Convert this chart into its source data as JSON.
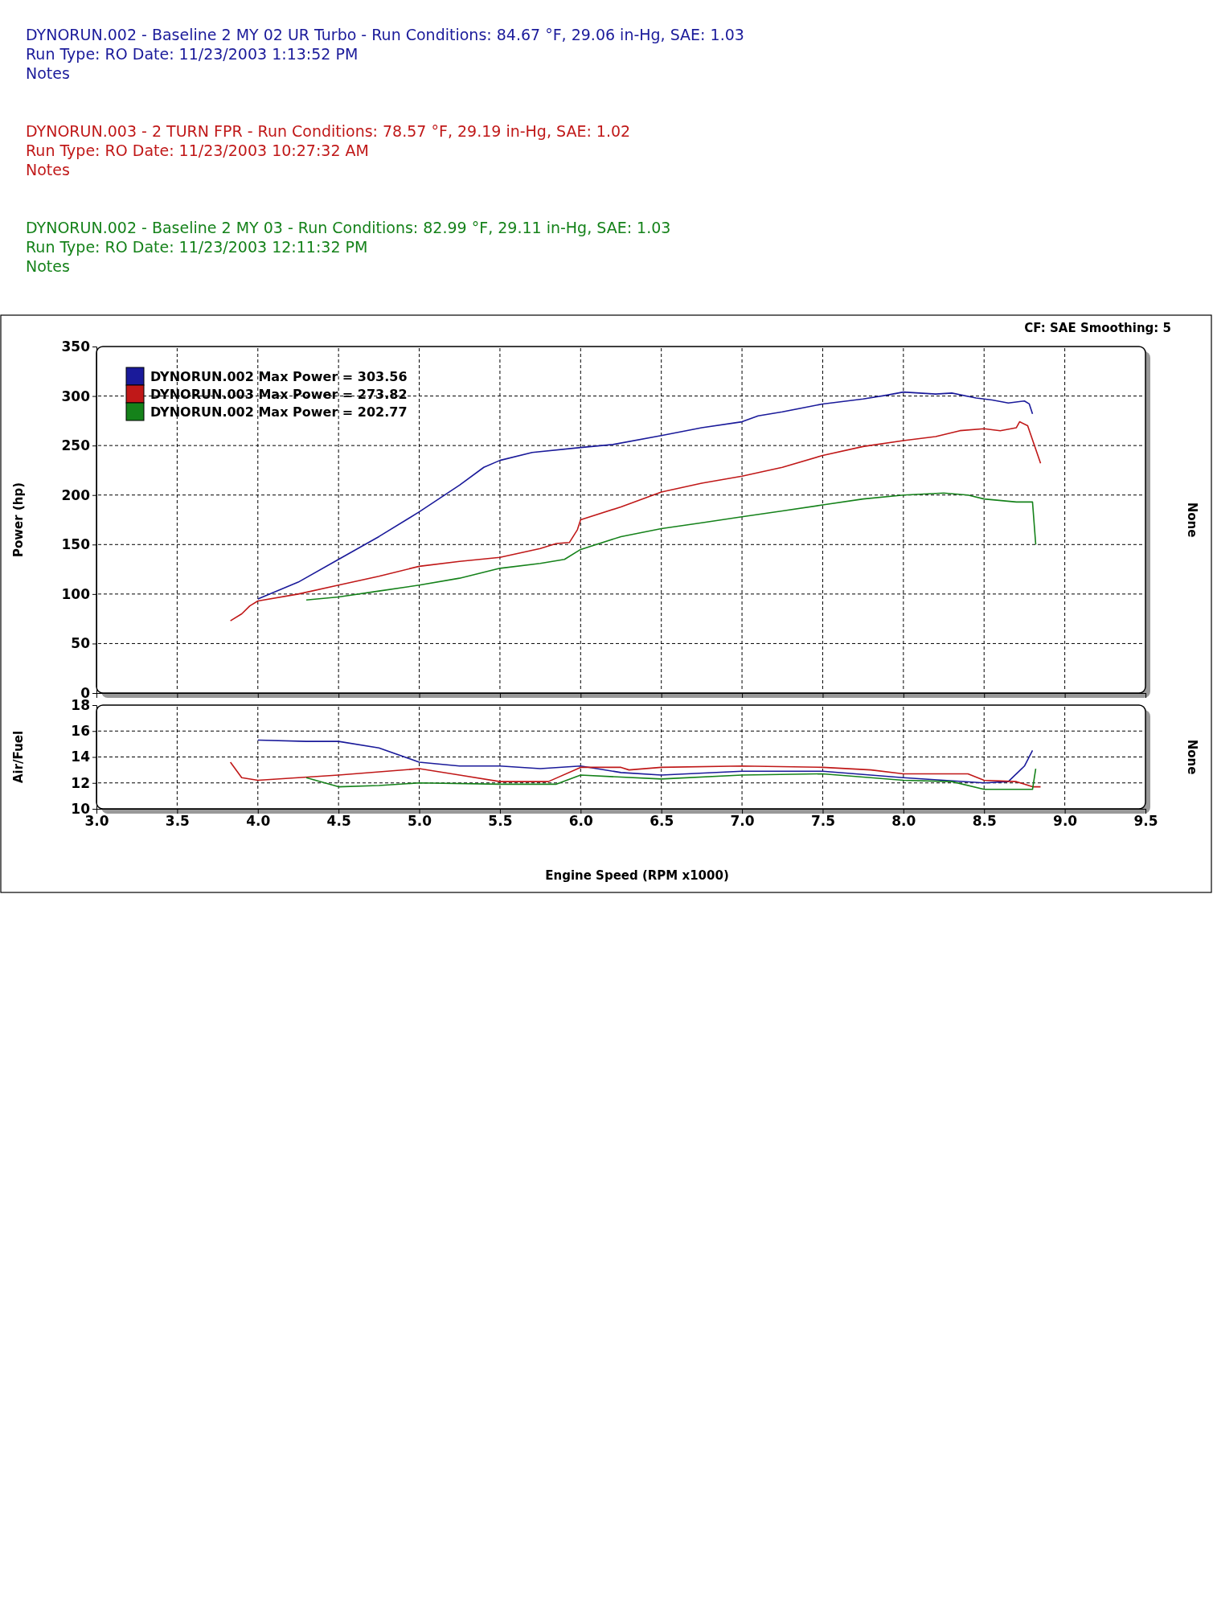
{
  "chart_data": [
    {
      "type": "line",
      "subtitle": "CF: SAE  Smoothing: 5",
      "ylabel": "Power (hp)",
      "y2label": "None",
      "annotations": [
        "DYNORUN.002 - Baseline 2 MY 02 UR Turbo  -  Run Conditions: 84.67 °F, 29.06 in-Hg, SAE: 1.03",
        "Run Type: RO  Date: 11/23/2003 1:13:52 PM",
        "Notes",
        "DYNORUN.003 - 2 TURN FPR  -  Run Conditions: 78.57 °F, 29.19 in-Hg, SAE: 1.02",
        "Run Type: RO  Date: 11/23/2003 10:27:32 AM",
        "Notes",
        "DYNORUN.002 - Baseline 2 MY 03  -  Run Conditions: 82.99 °F, 29.11 in-Hg, SAE: 1.03",
        "Run Type: RO  Date: 11/23/2003 12:11:32 PM",
        "Notes"
      ],
      "xlim": [
        3,
        9.5
      ],
      "xticks": [
        3,
        3.5,
        4,
        4.5,
        5,
        5.5,
        6,
        6.5,
        7,
        7.5,
        8,
        8.5,
        9,
        9.5
      ],
      "ylim": [
        0,
        350
      ],
      "yticks": [
        0,
        50,
        100,
        150,
        200,
        250,
        300,
        350
      ],
      "tick_labels": "y",
      "grid": true,
      "legend": "top left",
      "series": [
        {
          "name": "DYNORUN.002 Max Power = 303.56",
          "color": "#1a1a9a",
          "x": [
            4.0,
            4.25,
            4.5,
            4.75,
            5.0,
            5.25,
            5.4,
            5.5,
            5.7,
            6.0,
            6.2,
            6.5,
            6.75,
            7.0,
            7.1,
            7.25,
            7.5,
            7.75,
            7.9,
            8.0,
            8.2,
            8.3,
            8.45,
            8.55,
            8.65,
            8.75,
            8.78,
            8.8
          ],
          "values": [
            95,
            112,
            135,
            158,
            183,
            210,
            228,
            235,
            243,
            248,
            251,
            260,
            268,
            274,
            280,
            284,
            292,
            297,
            301,
            304,
            302,
            303,
            298,
            296,
            293,
            295,
            292,
            282
          ]
        },
        {
          "name": "DYNORUN.003 Max Power = 273.82",
          "color": "#c01818",
          "x": [
            3.83,
            3.9,
            3.95,
            4.0,
            4.25,
            4.5,
            4.75,
            5.0,
            5.25,
            5.5,
            5.75,
            5.85,
            5.93,
            5.98,
            6.0,
            6.25,
            6.5,
            6.75,
            7.0,
            7.25,
            7.5,
            7.75,
            8.0,
            8.2,
            8.35,
            8.5,
            8.6,
            8.7,
            8.72,
            8.77,
            8.85
          ],
          "values": [
            73,
            80,
            88,
            93,
            100,
            109,
            118,
            128,
            133,
            137,
            146,
            151,
            152,
            165,
            175,
            188,
            203,
            212,
            219,
            228,
            240,
            249,
            255,
            259,
            265,
            267,
            265,
            268,
            274,
            270,
            232
          ]
        },
        {
          "name": "DYNORUN.002 Max Power = 202.77",
          "color": "#15821a",
          "x": [
            4.3,
            4.5,
            4.75,
            5.0,
            5.25,
            5.5,
            5.75,
            5.9,
            6.0,
            6.25,
            6.5,
            6.75,
            7.0,
            7.25,
            7.5,
            7.75,
            8.0,
            8.25,
            8.4,
            8.5,
            8.7,
            8.8,
            8.82
          ],
          "values": [
            94,
            97,
            103,
            109,
            116,
            126,
            131,
            135,
            145,
            158,
            166,
            172,
            178,
            184,
            190,
            196,
            200,
            202,
            200,
            196,
            193,
            193,
            150
          ]
        }
      ]
    },
    {
      "type": "line",
      "xlabel": "Engine Speed (RPM x1000)",
      "ylabel": "Air/Fuel",
      "y2label": "None",
      "xlim": [
        3,
        9.5
      ],
      "xticks": [
        {
          "value": 3,
          "label": "3.0"
        },
        3.5,
        {
          "value": 4,
          "label": "4.0"
        },
        4.5,
        {
          "value": 5,
          "label": "5.0"
        },
        5.5,
        {
          "value": 6,
          "label": "6.0"
        },
        6.5,
        {
          "value": 7,
          "label": "7.0"
        },
        7.5,
        {
          "value": 8,
          "label": "8.0"
        },
        8.5,
        {
          "value": 9,
          "label": "9.0"
        },
        9.5
      ],
      "ylim": [
        10,
        18
      ],
      "yticks": [
        10,
        12,
        14,
        16,
        18
      ],
      "grid": true,
      "series": [
        {
          "color": "#1a1a9a",
          "x": [
            4.0,
            4.3,
            4.5,
            4.75,
            5.0,
            5.25,
            5.5,
            5.75,
            6.0,
            6.25,
            6.5,
            7.0,
            7.5,
            8.0,
            8.5,
            8.65,
            8.75,
            8.8
          ],
          "values": [
            15.3,
            15.2,
            15.2,
            14.7,
            13.6,
            13.3,
            13.3,
            13.1,
            13.3,
            12.8,
            12.6,
            12.9,
            12.9,
            12.4,
            12.0,
            12.1,
            13.3,
            14.5
          ]
        },
        {
          "color": "#c01818",
          "x": [
            3.83,
            3.9,
            4.0,
            4.5,
            5.0,
            5.25,
            5.5,
            5.8,
            6.0,
            6.25,
            6.3,
            6.5,
            7.0,
            7.5,
            7.8,
            8.0,
            8.4,
            8.5,
            8.7,
            8.8,
            8.85
          ],
          "values": [
            13.6,
            12.4,
            12.2,
            12.6,
            13.1,
            12.6,
            12.1,
            12.1,
            13.2,
            13.2,
            13.0,
            13.2,
            13.3,
            13.2,
            13.0,
            12.7,
            12.7,
            12.2,
            12.1,
            11.7,
            11.7
          ]
        },
        {
          "color": "#15821a",
          "x": [
            4.3,
            4.5,
            4.75,
            5.0,
            5.5,
            5.85,
            6.0,
            6.5,
            7.0,
            7.5,
            8.0,
            8.3,
            8.5,
            8.8,
            8.82
          ],
          "values": [
            12.4,
            11.7,
            11.8,
            12.0,
            11.9,
            11.9,
            12.6,
            12.3,
            12.6,
            12.7,
            12.2,
            12.1,
            11.5,
            11.5,
            13.1
          ]
        }
      ]
    }
  ]
}
